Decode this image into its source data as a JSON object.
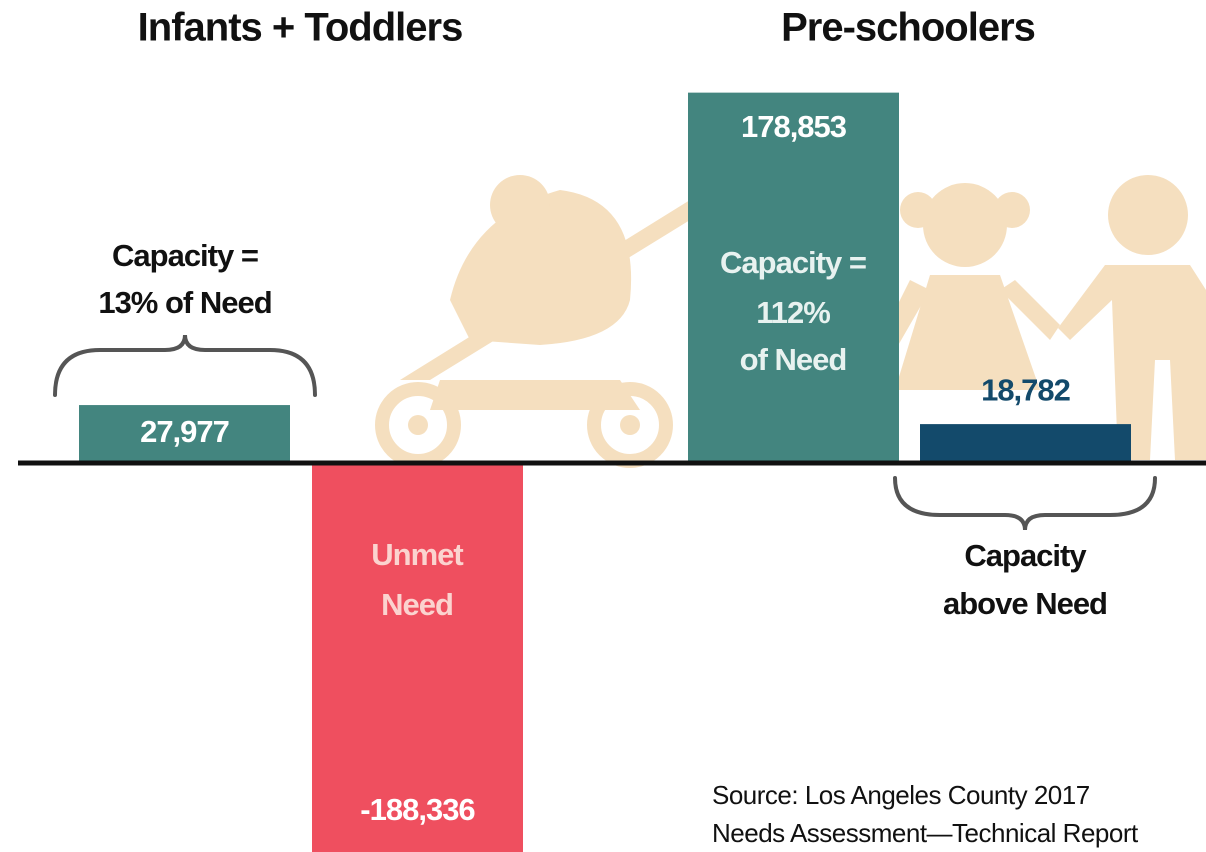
{
  "chart_data": {
    "type": "bar",
    "groups": [
      "Infants + Toddlers",
      "Pre-schoolers"
    ],
    "values": [
      27977,
      -188336,
      178853,
      18782
    ],
    "value_labels": [
      "27,977",
      "-188,336",
      "178,853",
      "18,782"
    ],
    "colors": [
      "#43857f",
      "#ef4f5f",
      "#43857f",
      "#134a6b"
    ],
    "annotations": [
      {
        "lines": [
          "Capacity =",
          "13% of Need"
        ]
      },
      {
        "lines": [
          "Capacity =",
          "112%",
          "of Need"
        ]
      },
      {
        "lines": [
          "Unmet",
          "Need"
        ]
      },
      {
        "lines": [
          "Capacity",
          "above Need"
        ]
      }
    ],
    "source": [
      "Source: Los Angeles County 2017",
      "Needs Assessment—Technical Report"
    ]
  }
}
